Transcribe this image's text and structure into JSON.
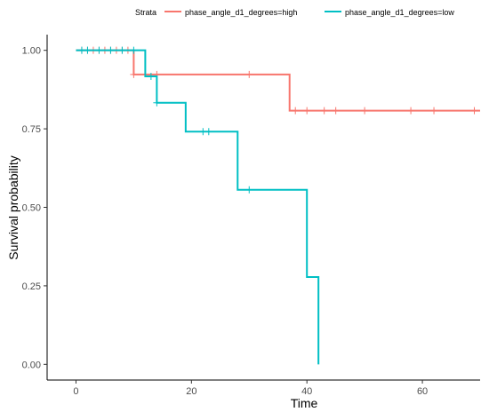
{
  "chart_data": {
    "type": "line",
    "subtype": "kaplan-meier step curve",
    "title": "",
    "xlabel": "Time",
    "ylabel": "Survival probability",
    "xlim": [
      -5,
      70
    ],
    "ylim": [
      -0.05,
      1.05
    ],
    "x_ticks": [
      0,
      20,
      40,
      60
    ],
    "x_tick_labels": [
      "0",
      "20",
      "40",
      "60"
    ],
    "y_ticks": [
      0,
      0.25,
      0.5,
      0.75,
      1
    ],
    "y_tick_labels": [
      "0.00",
      "0.25",
      "0.50",
      "0.75",
      "1.00"
    ],
    "grid": false,
    "legend": {
      "title": "Strata",
      "placement": "top",
      "entries": [
        "phase_angle_d1_degrees=high",
        "phase_angle_d1_degrees=low"
      ]
    },
    "series": [
      {
        "name": "phase_angle_d1_degrees=high",
        "color": "#f8766d",
        "steps": [
          {
            "time": 0,
            "survival": 1.0
          },
          {
            "time": 10,
            "survival": 0.923
          },
          {
            "time": 37,
            "survival": 0.808
          }
        ],
        "end_time": 70,
        "censor_times": [
          1,
          2,
          3,
          4,
          5,
          6,
          7,
          8,
          9,
          10,
          14,
          30,
          38,
          40,
          43,
          45,
          50,
          58,
          62,
          69
        ],
        "censor_survival": [
          1.0,
          1.0,
          1.0,
          1.0,
          1.0,
          1.0,
          1.0,
          1.0,
          1.0,
          0.923,
          0.923,
          0.923,
          0.808,
          0.808,
          0.808,
          0.808,
          0.808,
          0.808,
          0.808,
          0.808
        ]
      },
      {
        "name": "phase_angle_d1_degrees=low",
        "color": "#00bfc4",
        "steps": [
          {
            "time": 0,
            "survival": 1.0
          },
          {
            "time": 12,
            "survival": 0.917
          },
          {
            "time": 14,
            "survival": 0.833
          },
          {
            "time": 19,
            "survival": 0.741
          },
          {
            "time": 28,
            "survival": 0.556
          },
          {
            "time": 40,
            "survival": 0.278
          },
          {
            "time": 42,
            "survival": 0.0
          }
        ],
        "end_time": 42,
        "censor_times": [
          1,
          2,
          4,
          6,
          8,
          10,
          13,
          14,
          22,
          23,
          30
        ],
        "censor_survival": [
          1.0,
          1.0,
          1.0,
          1.0,
          1.0,
          1.0,
          0.917,
          0.833,
          0.741,
          0.741,
          0.556
        ]
      }
    ]
  }
}
